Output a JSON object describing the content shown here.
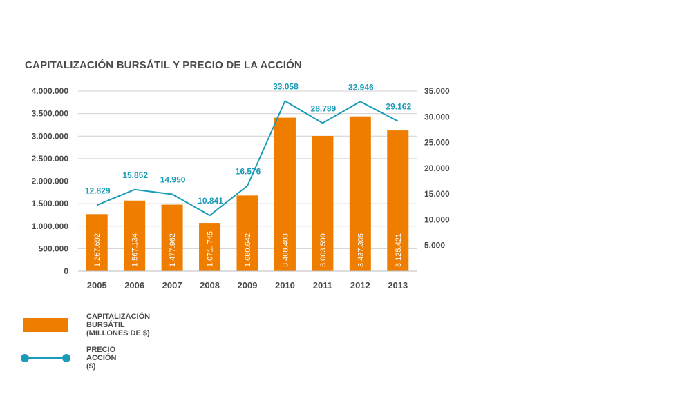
{
  "title": "CAPITALIZACIÓN BURSÁTIL Y PRECIO DE LA ACCIÓN",
  "colors": {
    "bar": "#ef7d00",
    "line": "#1a9bb8",
    "text": "#4a4a4a",
    "grid": "#d0d0d0"
  },
  "legend": {
    "bar_label": "CAPITALIZACIÓN BURSÁTIL (MILLONES DE $)",
    "line_label": "PRECIO ACCIÓN ($)"
  },
  "chart_data": {
    "type": "bar+line",
    "title": "CAPITALIZACIÓN BURSÁTIL Y PRECIO DE LA ACCIÓN",
    "categories": [
      "2005",
      "2006",
      "2007",
      "2008",
      "2009",
      "2010",
      "2011",
      "2012",
      "2013"
    ],
    "series": [
      {
        "name": "CAPITALIZACIÓN BURSÁTIL (MILLONES DE $)",
        "type": "bar",
        "axis": "left",
        "values": [
          1267692,
          1567134,
          1477962,
          1071745,
          1680642,
          3408483,
          3003599,
          3437305,
          3125421
        ],
        "labels": [
          "1.267.692",
          "1.567.134",
          "1.477.962",
          "1.071. 745",
          "1.680.642",
          "3.408.483",
          "3.003.599",
          "3.437.305",
          "3.125.421"
        ]
      },
      {
        "name": "PRECIO ACCIÓN ($)",
        "type": "line",
        "axis": "right",
        "values": [
          12829,
          15852,
          14950,
          10841,
          16576,
          33058,
          28789,
          32946,
          29162
        ],
        "labels": [
          "12.829",
          "15.852",
          "14.950",
          "10.841",
          "16.576",
          "33.058",
          "28.789",
          "32.946",
          "29.162"
        ]
      }
    ],
    "y_left": {
      "range": [
        0,
        4000000
      ],
      "ticks": [
        0,
        500000,
        1000000,
        1500000,
        2000000,
        2500000,
        3000000,
        3500000,
        4000000
      ],
      "tick_labels": [
        "0",
        "500.000",
        "1.000.000",
        "1.500.000",
        "2.000.000",
        "2.500.000",
        "3.000.000",
        "3.500.000",
        "4.000.000"
      ]
    },
    "y_right": {
      "range": [
        0,
        35000
      ],
      "ticks": [
        5000,
        10000,
        15000,
        20000,
        25000,
        30000,
        35000
      ],
      "tick_labels": [
        "5.000",
        "10.000",
        "15.000",
        "20.000",
        "25.000",
        "30.000",
        "35.000"
      ]
    },
    "grid": true
  }
}
